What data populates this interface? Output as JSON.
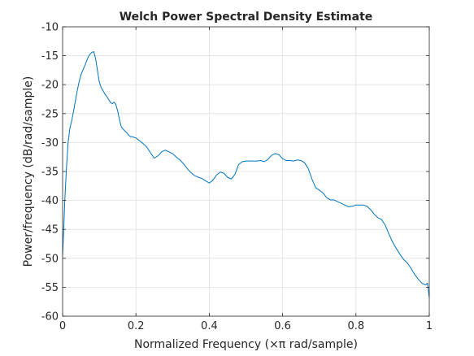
{
  "chart_data": {
    "type": "line",
    "title": "Welch Power Spectral Density Estimate",
    "xlabel": "Normalized Frequency  (×π rad/sample)",
    "ylabel": "Power/frequency (dB/rad/sample)",
    "xlim": [
      0,
      1
    ],
    "ylim": [
      -60,
      -10
    ],
    "xticks": [
      0,
      0.2,
      0.4,
      0.6,
      0.8,
      1
    ],
    "xtick_labels": [
      "0",
      "0.2",
      "0.4",
      "0.6",
      "0.8",
      "1"
    ],
    "yticks": [
      -60,
      -55,
      -50,
      -45,
      -40,
      -35,
      -30,
      -25,
      -20,
      -15,
      -10
    ],
    "ytick_labels": [
      "-60",
      "-55",
      "-50",
      "-45",
      "-40",
      "-35",
      "-30",
      "-25",
      "-20",
      "-15",
      "-10"
    ],
    "grid": true,
    "line_color": "#0072bd",
    "series": [
      {
        "x": [
          0,
          0.003,
          0.006,
          0.01,
          0.015,
          0.02,
          0.025,
          0.03,
          0.035,
          0.04,
          0.045,
          0.05,
          0.055,
          0.06,
          0.065,
          0.07,
          0.075,
          0.08,
          0.085,
          0.09,
          0.095,
          0.1,
          0.105,
          0.11,
          0.115,
          0.12,
          0.125,
          0.13,
          0.135,
          0.14,
          0.145,
          0.15,
          0.155,
          0.16,
          0.165,
          0.17,
          0.175,
          0.18,
          0.185,
          0.19,
          0.2,
          0.21,
          0.22,
          0.23,
          0.24,
          0.25,
          0.26,
          0.27,
          0.28,
          0.29,
          0.3,
          0.31,
          0.32,
          0.33,
          0.34,
          0.35,
          0.36,
          0.37,
          0.38,
          0.39,
          0.4,
          0.41,
          0.42,
          0.43,
          0.44,
          0.45,
          0.46,
          0.47,
          0.48,
          0.49,
          0.5,
          0.51,
          0.52,
          0.53,
          0.54,
          0.55,
          0.56,
          0.57,
          0.58,
          0.59,
          0.6,
          0.61,
          0.62,
          0.63,
          0.64,
          0.65,
          0.66,
          0.67,
          0.68,
          0.69,
          0.7,
          0.71,
          0.72,
          0.73,
          0.74,
          0.75,
          0.76,
          0.77,
          0.78,
          0.79,
          0.8,
          0.81,
          0.82,
          0.83,
          0.84,
          0.85,
          0.86,
          0.87,
          0.88,
          0.89,
          0.9,
          0.91,
          0.92,
          0.93,
          0.94,
          0.95,
          0.96,
          0.97,
          0.98,
          0.99,
          0.995,
          1.0
        ],
        "y": [
          -49.5,
          -45,
          -40,
          -35,
          -30,
          -27.5,
          -26.2,
          -24.5,
          -22.8,
          -21,
          -19.5,
          -18.3,
          -17.5,
          -16.8,
          -16,
          -15.2,
          -14.7,
          -14.4,
          -14.3,
          -15.5,
          -17.5,
          -19.5,
          -20.5,
          -21,
          -21.6,
          -22,
          -22.5,
          -23,
          -23.3,
          -23,
          -23.4,
          -24.5,
          -26,
          -27.3,
          -27.7,
          -28,
          -28.3,
          -28.7,
          -29,
          -29,
          -29.2,
          -29.7,
          -30.2,
          -30.8,
          -31.8,
          -32.7,
          -32.3,
          -31.6,
          -31.3,
          -31.6,
          -31.9,
          -32.5,
          -33,
          -33.7,
          -34.5,
          -35.2,
          -35.7,
          -36,
          -36.2,
          -36.6,
          -37,
          -36.5,
          -35.6,
          -35.1,
          -35.3,
          -36,
          -36.3,
          -35.5,
          -33.8,
          -33.3,
          -33.2,
          -33.2,
          -33.2,
          -33.2,
          -33.1,
          -33.3,
          -32.9,
          -32.2,
          -31.9,
          -32.1,
          -32.8,
          -33.1,
          -33.1,
          -33.2,
          -33,
          -33.1,
          -33.5,
          -34.5,
          -36.3,
          -37.8,
          -38.2,
          -38.7,
          -39.5,
          -39.9,
          -39.9,
          -40.2,
          -40.5,
          -40.8,
          -41.1,
          -41,
          -40.8,
          -40.8,
          -40.8,
          -41,
          -41.6,
          -42.4,
          -43,
          -43.3,
          -44.3,
          -45.8,
          -47.2,
          -48.3,
          -49.3,
          -50.2,
          -50.8,
          -51.7,
          -52.8,
          -53.6,
          -54.3,
          -54.6,
          -54.3,
          -56.8
        ]
      }
    ]
  }
}
